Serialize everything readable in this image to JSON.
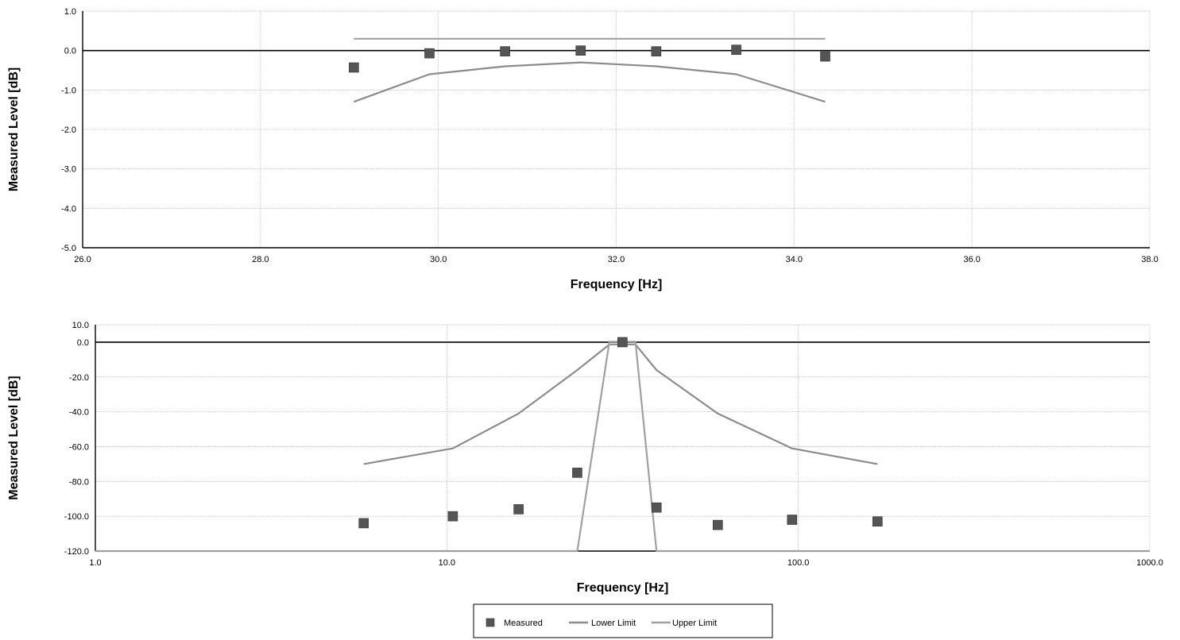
{
  "chart_data": [
    {
      "type": "scatter",
      "xlabel": "Frequency [Hz]",
      "ylabel": "Measured Level [dB]",
      "xlim": [
        26.0,
        38.0
      ],
      "ylim": [
        -5.0,
        1.0
      ],
      "x_scale": "linear",
      "x_ticks": [
        "26.0",
        "28.0",
        "30.0",
        "32.0",
        "34.0",
        "36.0",
        "38.0"
      ],
      "y_ticks": [
        "1.0",
        "0.0",
        "-1.0",
        "-2.0",
        "-3.0",
        "-4.0",
        "-5.0"
      ],
      "grid": true,
      "series": [
        {
          "name": "Measured",
          "kind": "markers",
          "color": "#555555",
          "x": [
            29.05,
            29.9,
            30.75,
            31.6,
            32.45,
            33.35,
            34.35
          ],
          "y": [
            -0.43,
            -0.07,
            -0.02,
            0.0,
            -0.02,
            0.02,
            -0.15
          ]
        },
        {
          "name": "Lower Limit",
          "kind": "line",
          "color": "#8c8c8c",
          "x": [
            29.05,
            29.9,
            30.75,
            31.6,
            32.45,
            33.35,
            34.35
          ],
          "y": [
            -1.3,
            -0.6,
            -0.4,
            -0.3,
            -0.4,
            -0.6,
            -1.3
          ]
        },
        {
          "name": "Upper Limit",
          "kind": "line",
          "color": "#a0a0a0",
          "x": [
            29.05,
            34.35
          ],
          "y": [
            0.3,
            0.3
          ]
        }
      ]
    },
    {
      "type": "scatter",
      "xlabel": "Frequency [Hz]",
      "ylabel": "Measured Level [dB]",
      "xlim": [
        1.0,
        1000.0
      ],
      "ylim": [
        -120.0,
        10.0
      ],
      "x_scale": "log",
      "x_ticks": [
        "1.0",
        "10.0",
        "100.0",
        "1000.0"
      ],
      "y_ticks": [
        "10.0",
        "0.0",
        "-20.0",
        "-40.0",
        "-60.0",
        "-80.0",
        "-100.0",
        "-120.0"
      ],
      "grid": true,
      "series": [
        {
          "name": "Measured",
          "kind": "markers",
          "color": "#555555",
          "x": [
            5.8,
            10.4,
            16.0,
            23.5,
            31.6,
            39.5,
            59.0,
            96.0,
            168.0
          ],
          "y": [
            -104,
            -100,
            -96,
            -75,
            0,
            -95,
            -105,
            -102,
            -103
          ]
        },
        {
          "name": "Lower Limit",
          "kind": "line",
          "color": "#8c8c8c",
          "x": [
            5.8,
            10.4,
            16.0,
            23.5,
            29.0,
            34.4,
            39.5,
            59.0,
            96.0,
            168.0
          ],
          "y": [
            -70,
            -61,
            -41,
            -16,
            -1.3,
            -1.3,
            -16,
            -41,
            -61,
            -70
          ]
        },
        {
          "name": "Upper Limit",
          "kind": "line",
          "color": "#a0a0a0",
          "x": [
            0.999,
            23.5,
            29.0,
            34.4,
            39.5,
            1000.0
          ],
          "y": [
            -120,
            -120,
            0.3,
            0.3,
            -120,
            -120
          ]
        }
      ]
    }
  ],
  "legend": {
    "placement": "bottom-center",
    "items": [
      {
        "label": "Measured",
        "kind": "marker",
        "color": "#555555"
      },
      {
        "label": "Lower Limit",
        "kind": "line",
        "color": "#8c8c8c"
      },
      {
        "label": "Upper Limit",
        "kind": "line",
        "color": "#a0a0a0"
      }
    ]
  }
}
